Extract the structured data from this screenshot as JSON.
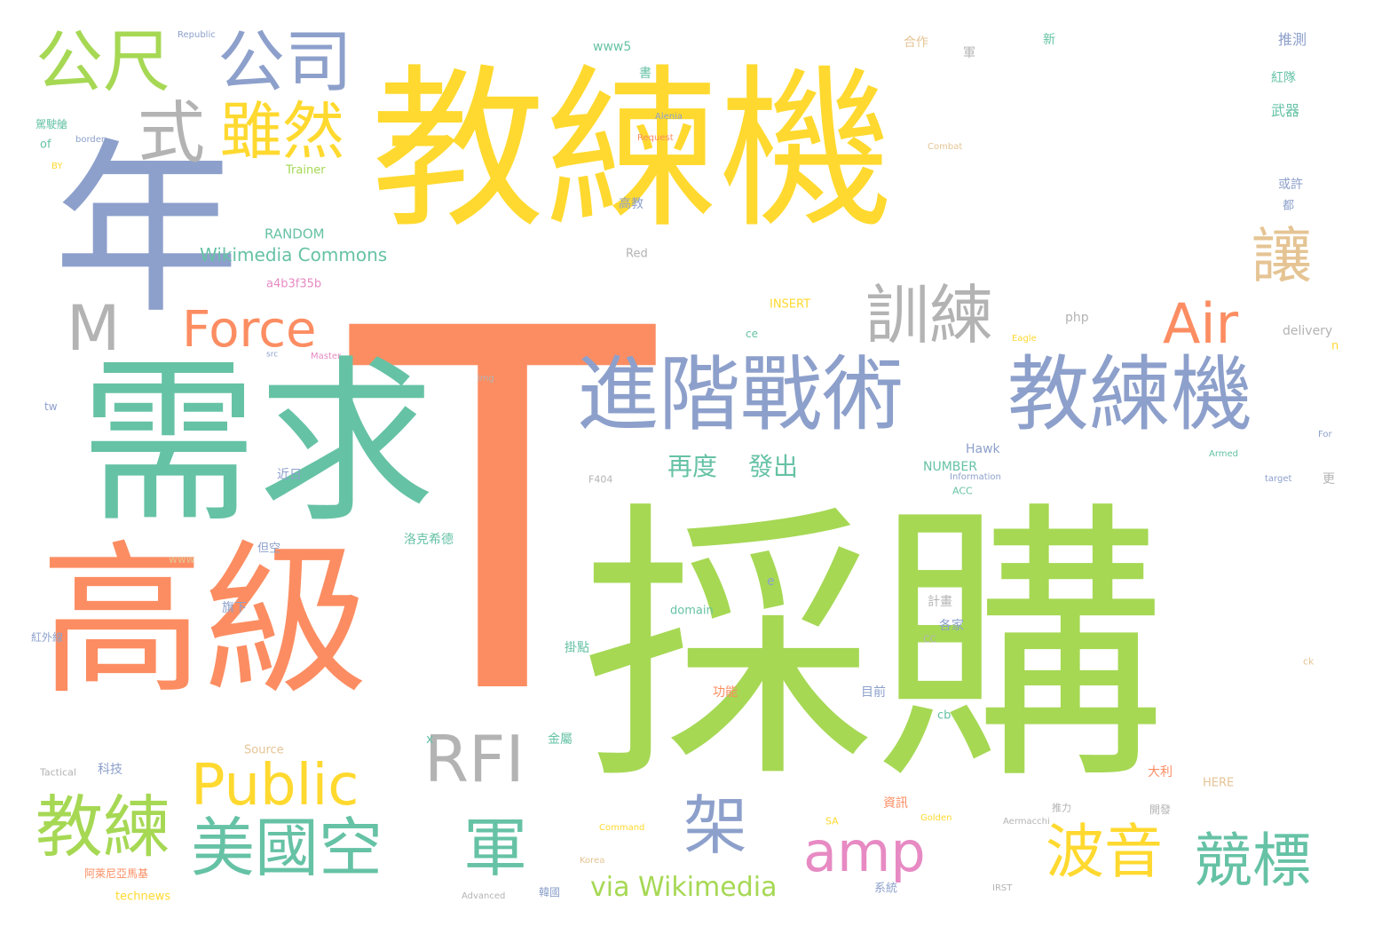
{
  "colors": {
    "yellow": "#ffd92f",
    "salmon": "#fc8d62",
    "green": "#a6d854",
    "teal": "#66c2a5",
    "blue": "#8da0cb",
    "gray": "#b3b3b3",
    "tan": "#e5c494",
    "pink": "#e78ac3"
  },
  "words": [
    {
      "text": "教練機",
      "color": "yellow"
    },
    {
      "text": "T",
      "color": "salmon"
    },
    {
      "text": "採購",
      "color": "green"
    },
    {
      "text": "需求",
      "color": "teal"
    },
    {
      "text": "高級",
      "color": "salmon"
    },
    {
      "text": "年",
      "color": "blue"
    },
    {
      "text": "進階戰術",
      "color": "blue"
    },
    {
      "text": "教練機",
      "color": "blue"
    },
    {
      "text": "公尺",
      "color": "green"
    },
    {
      "text": "公司",
      "color": "blue"
    },
    {
      "text": "式",
      "color": "gray"
    },
    {
      "text": "雖然",
      "color": "yellow"
    },
    {
      "text": "M",
      "color": "gray"
    },
    {
      "text": "Force",
      "color": "salmon"
    },
    {
      "text": "訓練",
      "color": "gray"
    },
    {
      "text": "Air",
      "color": "salmon"
    },
    {
      "text": "讓",
      "color": "tan"
    },
    {
      "text": "RFI",
      "color": "gray"
    },
    {
      "text": "Public",
      "color": "yellow"
    },
    {
      "text": "教練",
      "color": "green"
    },
    {
      "text": "美國空",
      "color": "teal"
    },
    {
      "text": "軍",
      "color": "teal"
    },
    {
      "text": "架",
      "color": "blue"
    },
    {
      "text": "amp",
      "color": "pink"
    },
    {
      "text": "波音",
      "color": "yellow"
    },
    {
      "text": "競標",
      "color": "teal"
    },
    {
      "text": "via Wikimedia",
      "color": "green"
    },
    {
      "text": "再度",
      "color": "teal"
    },
    {
      "text": "發出",
      "color": "teal"
    },
    {
      "text": "Wikimedia Commons",
      "color": "teal"
    },
    {
      "text": "RANDOM",
      "color": "teal"
    },
    {
      "text": "Trainer",
      "color": "green"
    },
    {
      "text": "www5",
      "color": "teal"
    },
    {
      "text": "Republic",
      "color": "blue"
    },
    {
      "text": "合作",
      "color": "tan"
    },
    {
      "text": "推測",
      "color": "blue"
    },
    {
      "text": "紅隊",
      "color": "teal"
    },
    {
      "text": "武器",
      "color": "teal"
    },
    {
      "text": "高教",
      "color": "blue"
    },
    {
      "text": "Red",
      "color": "gray"
    },
    {
      "text": "INSERT",
      "color": "yellow"
    },
    {
      "text": "php",
      "color": "gray"
    },
    {
      "text": "delivery",
      "color": "gray"
    },
    {
      "text": "Hawk",
      "color": "blue"
    },
    {
      "text": "NUMBER",
      "color": "teal"
    },
    {
      "text": "Information",
      "color": "blue"
    },
    {
      "text": "近日",
      "color": "blue"
    },
    {
      "text": "洛克希德",
      "color": "teal"
    },
    {
      "text": "但空",
      "color": "blue"
    },
    {
      "text": "www",
      "color": "tan"
    },
    {
      "text": "旗下",
      "color": "blue"
    },
    {
      "text": "domain",
      "color": "teal"
    },
    {
      "text": "計畫",
      "color": "gray"
    },
    {
      "text": "各家",
      "color": "blue"
    },
    {
      "text": "掛點",
      "color": "teal"
    },
    {
      "text": "功能",
      "color": "salmon"
    },
    {
      "text": "目前",
      "color": "blue"
    },
    {
      "text": "cb",
      "color": "teal"
    },
    {
      "text": "金屬",
      "color": "teal"
    },
    {
      "text": "Source",
      "color": "tan"
    },
    {
      "text": "科技",
      "color": "blue"
    },
    {
      "text": "Tactical",
      "color": "gray"
    },
    {
      "text": "大利",
      "color": "salmon"
    },
    {
      "text": "HERE",
      "color": "tan"
    },
    {
      "text": "資訊",
      "color": "salmon"
    },
    {
      "text": "系統",
      "color": "blue"
    },
    {
      "text": "technews",
      "color": "yellow"
    },
    {
      "text": "阿萊尼亞馬基",
      "color": "salmon"
    },
    {
      "text": "Command",
      "color": "yellow"
    },
    {
      "text": "Golden",
      "color": "yellow"
    },
    {
      "text": "Aermacchi",
      "color": "gray"
    },
    {
      "text": "Advanced",
      "color": "gray"
    },
    {
      "text": "韓國",
      "color": "blue"
    },
    {
      "text": "Korea",
      "color": "tan"
    },
    {
      "text": "開發",
      "color": "gray"
    },
    {
      "text": "推力",
      "color": "gray"
    },
    {
      "text": "a4b3f35b",
      "color": "pink"
    },
    {
      "text": "of",
      "color": "teal"
    },
    {
      "text": "border",
      "color": "blue"
    },
    {
      "text": "駕駛艙",
      "color": "teal"
    },
    {
      "text": "BY",
      "color": "yellow"
    },
    {
      "text": "tw",
      "color": "blue"
    },
    {
      "text": "紅外線",
      "color": "blue"
    },
    {
      "text": "Alenia",
      "color": "blue"
    },
    {
      "text": "Request",
      "color": "salmon"
    },
    {
      "text": "Combat",
      "color": "tan"
    },
    {
      "text": "src",
      "color": "blue"
    },
    {
      "text": "Master",
      "color": "pink"
    },
    {
      "text": "Eagle",
      "color": "yellow"
    },
    {
      "text": "或許",
      "color": "blue"
    },
    {
      "text": "都",
      "color": "blue"
    },
    {
      "text": "新",
      "color": "teal"
    },
    {
      "text": "書",
      "color": "teal"
    },
    {
      "text": "軍",
      "color": "gray"
    },
    {
      "text": "更",
      "color": "gray"
    },
    {
      "text": "For",
      "color": "blue"
    },
    {
      "text": "Armed",
      "color": "teal"
    },
    {
      "text": "target",
      "color": "blue"
    },
    {
      "text": "F404",
      "color": "gray"
    },
    {
      "text": "img",
      "color": "gray"
    },
    {
      "text": "n",
      "color": "yellow"
    },
    {
      "text": "ce",
      "color": "teal"
    },
    {
      "text": "ACC",
      "color": "teal"
    },
    {
      "text": "CC",
      "color": "gray"
    },
    {
      "text": "IRST",
      "color": "gray"
    },
    {
      "text": "SA",
      "color": "yellow"
    },
    {
      "text": "ck",
      "color": "tan"
    },
    {
      "text": "x",
      "color": "teal"
    },
    {
      "text": "e",
      "color": "blue"
    }
  ]
}
